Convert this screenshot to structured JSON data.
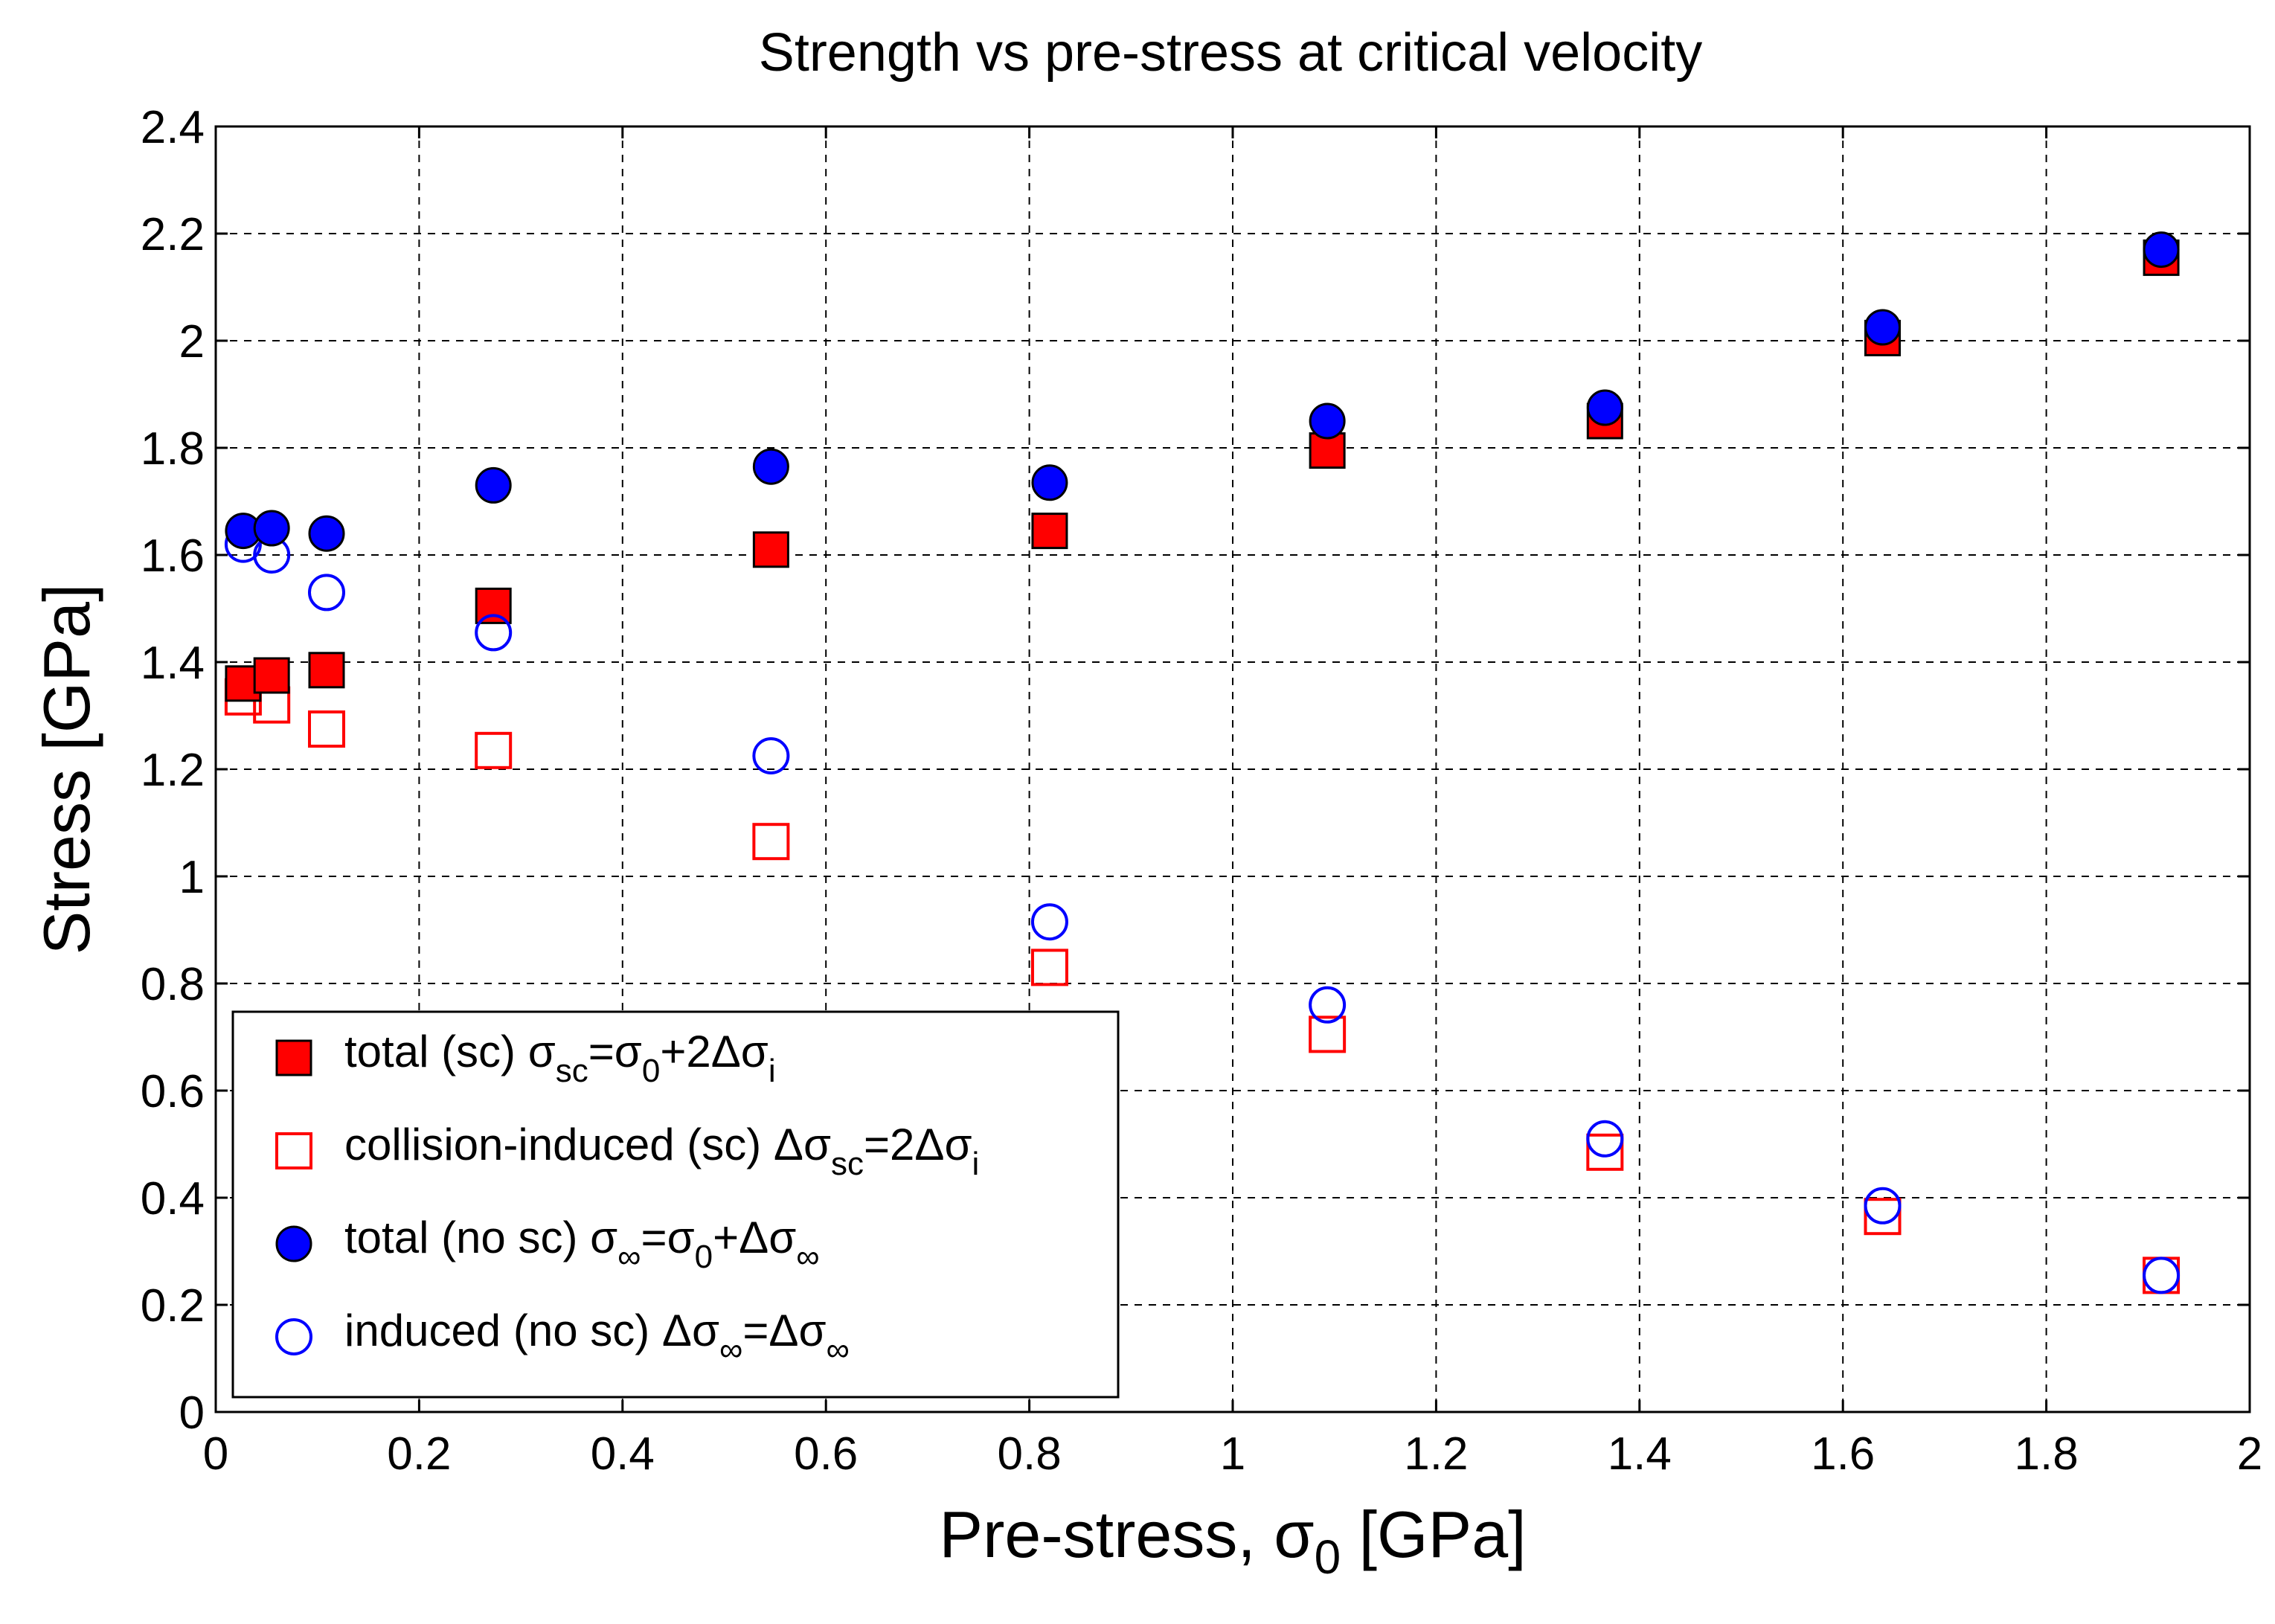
{
  "chart_data": {
    "type": "scatter",
    "title": "Strength vs pre-stress at critical velocity",
    "xlabel": {
      "main": "Pre-stress, σ",
      "sub": "0",
      "unit": " [GPa]"
    },
    "ylabel": "Stress [GPa]",
    "xlim": [
      0,
      2
    ],
    "ylim": [
      0,
      2.4
    ],
    "xticks": [
      0,
      0.2,
      0.4,
      0.6,
      0.8,
      1,
      1.2,
      1.4,
      1.6,
      1.8,
      2
    ],
    "xtick_labels": [
      "0",
      "0.2",
      "0.4",
      "0.6",
      "0.8",
      "1",
      "1.2",
      "1.4",
      "1.6",
      "1.8",
      "2"
    ],
    "yticks": [
      0,
      0.2,
      0.4,
      0.6,
      0.8,
      1,
      1.2,
      1.4,
      1.6,
      1.8,
      2,
      2.2,
      2.4
    ],
    "ytick_labels": [
      "0",
      "0.2",
      "0.4",
      "0.6",
      "0.8",
      "1",
      "1.2",
      "1.4",
      "1.6",
      "1.8",
      "2",
      "2.2",
      "2.4"
    ],
    "grid": true,
    "legend_position": "bottom-left",
    "x": [
      0.027,
      0.055,
      0.109,
      0.273,
      0.546,
      0.82,
      1.093,
      1.366,
      1.639,
      1.913
    ],
    "series": [
      {
        "name": "total (sc) σsc=σ0+2Δσi",
        "legend": [
          {
            "t": "total (sc) σ"
          },
          {
            "t": "sc",
            "sub": true
          },
          {
            "t": "=σ"
          },
          {
            "t": "0",
            "sub": true
          },
          {
            "t": "+2Δσ"
          },
          {
            "t": "i",
            "sub": true
          }
        ],
        "marker": "square",
        "filled": true,
        "color": "#ff0000",
        "edge": "#000000",
        "values": [
          1.36,
          1.375,
          1.385,
          1.505,
          1.61,
          1.645,
          1.795,
          1.85,
          2.005,
          2.155
        ]
      },
      {
        "name": "collision-induced (sc) Δσsc=2Δσi",
        "legend": [
          {
            "t": "collision-induced (sc) Δσ"
          },
          {
            "t": "sc",
            "sub": true
          },
          {
            "t": "=2Δσ"
          },
          {
            "t": "i",
            "sub": true
          }
        ],
        "marker": "square",
        "filled": false,
        "color": "#ff0000",
        "edge": "#ff0000",
        "values": [
          1.335,
          1.32,
          1.275,
          1.235,
          1.065,
          0.83,
          0.705,
          0.485,
          0.365,
          0.255
        ]
      },
      {
        "name": "total (no sc) σ∞=σ0+Δσ∞",
        "legend": [
          {
            "t": "total (no sc) σ"
          },
          {
            "t": "∞",
            "sub": true
          },
          {
            "t": "=σ"
          },
          {
            "t": "0",
            "sub": true
          },
          {
            "t": "+Δσ"
          },
          {
            "t": "∞",
            "sub": true
          }
        ],
        "marker": "circle",
        "filled": true,
        "color": "#0000ff",
        "edge": "#000000",
        "values": [
          1.645,
          1.65,
          1.64,
          1.73,
          1.765,
          1.735,
          1.85,
          1.875,
          2.025,
          2.17
        ]
      },
      {
        "name": "induced (no sc) Δσ∞=Δσ∞",
        "legend": [
          {
            "t": "induced (no sc) Δσ"
          },
          {
            "t": "∞",
            "sub": true
          },
          {
            "t": "=Δσ"
          },
          {
            "t": "∞",
            "sub": true
          }
        ],
        "marker": "circle",
        "filled": false,
        "color": "#0000ff",
        "edge": "#0000ff",
        "values": [
          1.62,
          1.6,
          1.53,
          1.455,
          1.225,
          0.915,
          0.76,
          0.51,
          0.385,
          0.255
        ]
      }
    ]
  }
}
